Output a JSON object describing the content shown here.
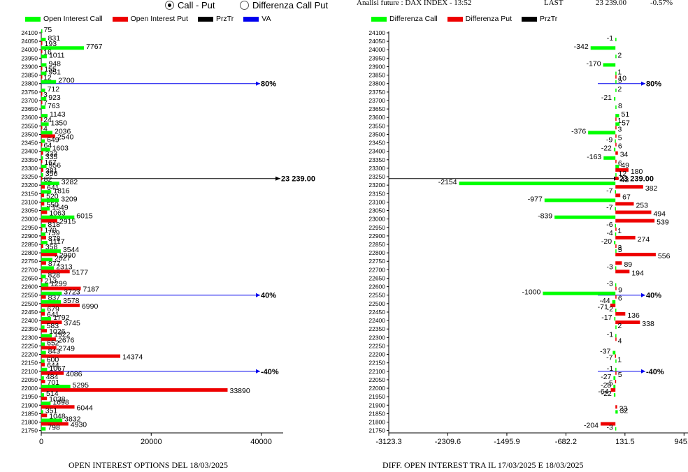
{
  "header": {
    "radio_call_put": "Call - Put",
    "radio_diff": "Differenza Call Put",
    "analysis_label": "Analisi future : DAX INDEX - 13:52",
    "last_label": "LAST",
    "last_value": "23 239.00",
    "change": "-0.57%"
  },
  "colors": {
    "green": "#00ff00",
    "red": "#ee0000",
    "black": "#000000",
    "blue": "#0000ee",
    "axis": "#000000"
  },
  "chart_data": [
    {
      "type": "bar",
      "orientation": "horizontal",
      "title": "OPEN INTEREST OPTIONS DEL 18/03/2025",
      "legend": [
        "Open Interest Call",
        "Open Interest Put",
        "PrzTr",
        "VA"
      ],
      "strikes": [
        24100,
        24050,
        24000,
        23950,
        23900,
        23850,
        23800,
        23750,
        23700,
        23650,
        23600,
        23550,
        23500,
        23450,
        23400,
        23350,
        23300,
        23250,
        23200,
        23150,
        23100,
        23050,
        23000,
        22950,
        22900,
        22850,
        22800,
        22750,
        22700,
        22650,
        22600,
        22550,
        22500,
        22450,
        22400,
        22350,
        22300,
        22250,
        22200,
        22150,
        22100,
        22050,
        22000,
        21950,
        21900,
        21850,
        21800,
        21750
      ],
      "xlim": [
        0,
        44000
      ],
      "xticks": [
        "0",
        "20000",
        "40000"
      ],
      "xtick_values": [
        0,
        20000,
        40000
      ],
      "series": [
        {
          "name": "Open Interest Call",
          "values": [
            75,
            831,
            7767,
            1011,
            948,
            951,
            2700,
            712,
            923,
            763,
            1143,
            1350,
            2036,
            649,
            1603,
            335,
            956,
            356,
            3282,
            1816,
            3209,
            1549,
            6015,
            818,
            759,
            1117,
            3544,
            2027,
            2313,
            828,
            1299,
            3723,
            3578,
            679,
            1792,
            583,
            1922,
            652,
            843,
            600,
            1067,
            484,
            5295,
            514,
            1698,
            351,
            3832,
            798
          ]
        },
        {
          "name": "Open Interest Put",
          "values": [
            0,
            193,
            16,
            0,
            155,
            12,
            0,
            3,
            7,
            0,
            24,
            4,
            2540,
            64,
            333,
            167,
            381,
            82,
            641,
            520,
            550,
            1063,
            2915,
            170,
            878,
            358,
            2900,
            877,
            5177,
            213,
            7187,
            837,
            6990,
            641,
            3745,
            1026,
            2676,
            2749,
            14374,
            644,
            4086,
            701,
            33890,
            1038,
            6044,
            1048,
            4930,
            0
          ]
        }
      ],
      "reference_lines": [
        {
          "name": "PrzTr",
          "strike": 23239,
          "label": "23 239.00"
        },
        {
          "name": "VA",
          "strike": 23800,
          "label": "80%"
        },
        {
          "name": "VA",
          "strike": 22550,
          "label": "40%"
        },
        {
          "name": "VA",
          "strike": 22100,
          "label": "-40%"
        }
      ]
    },
    {
      "type": "bar",
      "orientation": "horizontal",
      "title": "DIFF. OPEN INTEREST TRA IL 17/03/2025 E 18/03/2025",
      "legend": [
        "Differenza Call",
        "Differenza Put",
        "PrzTr"
      ],
      "strikes": [
        24100,
        24050,
        24000,
        23950,
        23900,
        23850,
        23800,
        23750,
        23700,
        23650,
        23600,
        23550,
        23500,
        23450,
        23400,
        23350,
        23300,
        23250,
        23200,
        23150,
        23100,
        23050,
        23000,
        22950,
        22900,
        22850,
        22800,
        22750,
        22700,
        22650,
        22600,
        22550,
        22500,
        22450,
        22400,
        22350,
        22300,
        22250,
        22200,
        22150,
        22100,
        22050,
        22000,
        21950,
        21900,
        21850,
        21800,
        21750
      ],
      "xlim": [
        -3123.3,
        1000
      ],
      "xticks": [
        "-3123.3",
        "-2309.6",
        "-1495.9",
        "-682.2",
        "131.5",
        "945.2"
      ],
      "xtick_values": [
        -3123.3,
        -2309.6,
        -1495.9,
        -682.2,
        131.5,
        945.2
      ],
      "series": [
        {
          "name": "Differenza Call",
          "values": [
            0,
            -1,
            -342,
            2,
            -170,
            1,
            5,
            2,
            -21,
            8,
            51,
            57,
            -376,
            -9,
            -22,
            -163,
            49,
            12,
            -2154,
            -7,
            -977,
            -7,
            -839,
            -6,
            -4,
            -20,
            5,
            0,
            -3,
            0,
            -3,
            -1000,
            -44,
            -2,
            -17,
            2,
            -1,
            0,
            -37,
            1,
            -1,
            -27,
            -28,
            -22,
            0,
            32,
            0,
            -3
          ]
        },
        {
          "name": "Differenza Put",
          "values": [
            0,
            0,
            0,
            0,
            0,
            10,
            0,
            0,
            0,
            0,
            1,
            3,
            5,
            6,
            34,
            6,
            180,
            43,
            382,
            67,
            253,
            494,
            539,
            1,
            274,
            3,
            556,
            89,
            194,
            0,
            9,
            6,
            -71,
            136,
            338,
            0,
            4,
            0,
            -7,
            0,
            5,
            -5,
            -64,
            0,
            23,
            0,
            -204,
            0
          ]
        }
      ],
      "reference_lines": [
        {
          "name": "PrzTr",
          "strike": 23239,
          "label": "23 239.00"
        },
        {
          "name": "VA",
          "strike": 23800,
          "label": "80%"
        },
        {
          "name": "VA",
          "strike": 22550,
          "label": "40%"
        },
        {
          "name": "VA",
          "strike": 22100,
          "label": "-40%"
        }
      ]
    }
  ]
}
